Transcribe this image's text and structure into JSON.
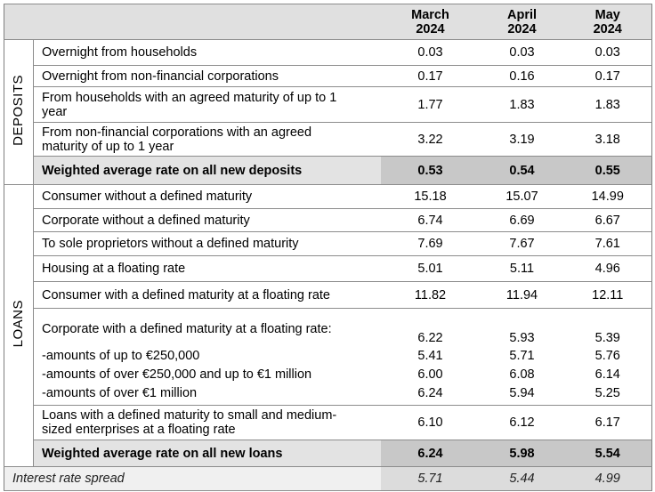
{
  "table": {
    "header": [
      {
        "month": "March",
        "year": "2024"
      },
      {
        "month": "April",
        "year": "2024"
      },
      {
        "month": "May",
        "year": "2024"
      }
    ],
    "sections": [
      {
        "label": "DEPOSITS",
        "rows": [
          {
            "label": "Overnight from households",
            "values": [
              "0.03",
              "0.03",
              "0.03"
            ]
          },
          {
            "label": "Overnight from non-financial corporations",
            "values": [
              "0.17",
              "0.16",
              "0.17"
            ]
          },
          {
            "label": "From households with an agreed maturity of up to 1 year",
            "values": [
              "1.77",
              "1.83",
              "1.83"
            ]
          },
          {
            "label": "From non-financial corporations with an agreed maturity of up to 1 year",
            "values": [
              "3.22",
              "3.19",
              "3.18"
            ]
          }
        ],
        "total": {
          "label": "Weighted average rate on all new deposits",
          "values": [
            "0.53",
            "0.54",
            "0.55"
          ]
        }
      },
      {
        "label": "LOANS",
        "rows": [
          {
            "label": "Consumer without a defined maturity",
            "values": [
              "15.18",
              "15.07",
              "14.99"
            ]
          },
          {
            "label": "Corporate without a defined maturity",
            "values": [
              "6.74",
              "6.69",
              "6.67"
            ]
          },
          {
            "label": "To sole proprietors without a defined maturity",
            "values": [
              "7.69",
              "7.67",
              "7.61"
            ]
          },
          {
            "label": "Housing at a floating rate",
            "values": [
              "5.01",
              "5.11",
              "4.96"
            ]
          },
          {
            "label": "Consumer with a defined maturity at a floating rate",
            "values": [
              "11.82",
              "11.94",
              "12.11"
            ]
          },
          {
            "label": "Corporate with a defined maturity at a floating rate:",
            "values": [
              "6.22",
              "5.93",
              "5.39"
            ],
            "subrows": [
              {
                "label": "-amounts of up to €250,000",
                "values": [
                  "5.41",
                  "5.71",
                  "5.76"
                ]
              },
              {
                "label": "-amounts of over €250,000 and up to €1 million",
                "values": [
                  "6.00",
                  "6.08",
                  "6.14"
                ]
              },
              {
                "label": "-amounts of over €1 million",
                "values": [
                  "6.24",
                  "5.94",
                  "5.25"
                ]
              }
            ]
          },
          {
            "label": "Loans with a defined maturity to small and medium-sized enterprises at a floating rate",
            "values": [
              "6.10",
              "6.12",
              "6.17"
            ]
          }
        ],
        "total": {
          "label": "Weighted average rate on all new loans",
          "values": [
            "6.24",
            "5.98",
            "5.54"
          ]
        }
      }
    ],
    "spread": {
      "label": "Interest rate spread",
      "values": [
        "5.71",
        "5.44",
        "4.99"
      ]
    }
  }
}
